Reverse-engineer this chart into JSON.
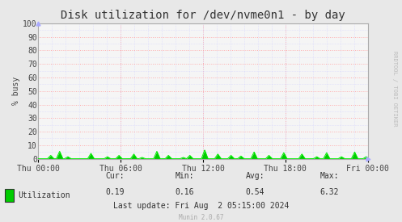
{
  "title": "Disk utilization for /dev/nvme0n1 - by day",
  "ylabel": "% busy",
  "background_color": "#e8e8e8",
  "plot_bg_color": "#f5f5f5",
  "grid_color_major": "#ffaaaa",
  "grid_color_minor": "#ccccff",
  "line_color": "#00ee00",
  "fill_color": "#00cc00",
  "border_color": "#aaaaaa",
  "ylim": [
    0,
    100
  ],
  "yticks": [
    0,
    10,
    20,
    30,
    40,
    50,
    60,
    70,
    80,
    90,
    100
  ],
  "xtick_labels": [
    "Thu 00:00",
    "Thu 06:00",
    "Thu 12:00",
    "Thu 18:00",
    "Fri 00:00"
  ],
  "stats_labels": [
    "Cur:",
    "Min:",
    "Avg:",
    "Max:"
  ],
  "stats_values": [
    "0.19",
    "0.16",
    "0.54",
    "6.32"
  ],
  "last_update": "Last update: Fri Aug  2 05:15:00 2024",
  "legend_label": "Utilization",
  "rrdtool_label": "RRDTOOL / TOBI OETIKER",
  "munin_label": "Munin 2.0.67",
  "title_fontsize": 10,
  "axis_fontsize": 7,
  "stats_fontsize": 7,
  "spike_positions": [
    0.038,
    0.065,
    0.09,
    0.16,
    0.21,
    0.245,
    0.29,
    0.315,
    0.36,
    0.395,
    0.44,
    0.46,
    0.505,
    0.545,
    0.585,
    0.615,
    0.655,
    0.7,
    0.745,
    0.8,
    0.845,
    0.875,
    0.92,
    0.96,
    0.995,
    1.05,
    1.08,
    1.1
  ],
  "spike_heights": [
    2.5,
    5.5,
    1.5,
    4.0,
    1.5,
    2.5,
    3.5,
    1.0,
    5.5,
    2.5,
    1.0,
    2.5,
    6.5,
    3.5,
    2.5,
    2.0,
    5.0,
    2.5,
    4.5,
    3.5,
    1.5,
    4.5,
    1.5,
    5.0,
    1.5,
    3.0,
    2.5,
    1.5
  ]
}
